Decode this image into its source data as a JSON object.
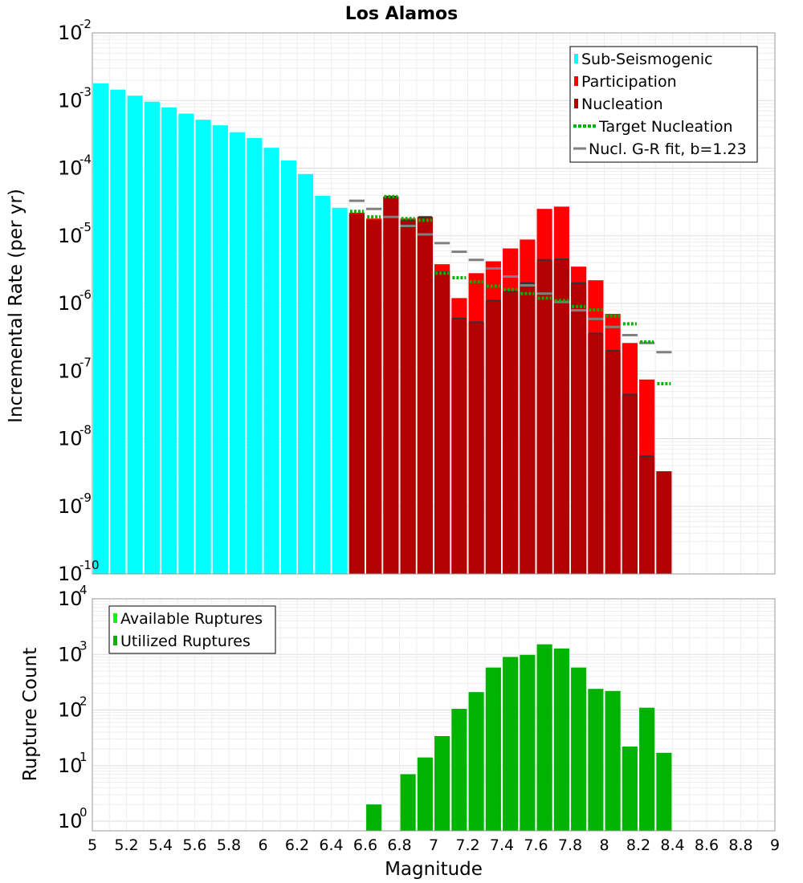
{
  "chart_data": [
    {
      "type": "bar",
      "title": "Los Alamos",
      "ylabel": "Incremental Rate (per yr)",
      "xlim": [
        5,
        9
      ],
      "ylim_exp": [
        -10,
        -2
      ],
      "yscale": "log",
      "grid": true,
      "legend_position": "top-right",
      "ytick_base": "10",
      "ytick_exponents": [
        "-10",
        "-9",
        "-8",
        "-7",
        "-6",
        "-5",
        "-4",
        "-3",
        "-2"
      ],
      "legend": [
        "Sub-Seismogenic",
        "Participation",
        "Nucleation",
        "Target Nucleation",
        "Nucl. G-R fit, b=1.23"
      ],
      "colors": {
        "sub": "#00ffff",
        "participation": "#ff0000",
        "nucleation": "#b30000",
        "target": "#00b300",
        "gr": "#808080",
        "nucl_mark": "#333333"
      },
      "x": [
        5.05,
        5.15,
        5.25,
        5.35,
        5.45,
        5.55,
        5.65,
        5.75,
        5.85,
        5.95,
        6.05,
        6.15,
        6.25,
        6.35,
        6.45,
        6.55,
        6.65,
        6.75,
        6.85,
        6.95,
        7.05,
        7.15,
        7.25,
        7.35,
        7.45,
        7.55,
        7.65,
        7.75,
        7.85,
        7.95,
        8.05,
        8.15,
        8.25,
        8.35
      ],
      "series": [
        {
          "name": "Sub-Seismogenic",
          "values": [
            0.0018,
            0.00145,
            0.00118,
            0.00096,
            0.00079,
            0.00064,
            0.00052,
            0.00043,
            0.00034,
            0.00028,
            0.0002,
            0.00013,
            8.2e-05,
            3.9e-05,
            2.6e-05,
            null,
            null,
            null,
            null,
            null,
            null,
            null,
            null,
            null,
            null,
            null,
            null,
            null,
            null,
            null,
            null,
            null,
            null,
            null
          ]
        },
        {
          "name": "Participation",
          "values": [
            null,
            null,
            null,
            null,
            null,
            null,
            null,
            null,
            null,
            null,
            null,
            null,
            null,
            null,
            null,
            2.2e-05,
            1.8e-05,
            3.8e-05,
            1.8e-05,
            1.9e-05,
            3.8e-06,
            1.2e-06,
            2.8e-06,
            4.2e-06,
            6.5e-06,
            8.8e-06,
            2.5e-05,
            2.7e-05,
            3.5e-06,
            2.2e-06,
            7e-07,
            2.6e-07,
            7.5e-08,
            null
          ]
        },
        {
          "name": "Nucleation",
          "values": [
            null,
            null,
            null,
            null,
            null,
            null,
            null,
            null,
            null,
            null,
            null,
            null,
            null,
            null,
            null,
            2.1e-05,
            1.7e-05,
            3.8e-05,
            1.7e-05,
            1.9e-05,
            2.9e-06,
            6e-07,
            5.3e-07,
            1.1e-06,
            1.5e-06,
            2e-06,
            4.4e-06,
            4.5e-06,
            2e-06,
            3.6e-07,
            2e-07,
            4.5e-08,
            5.5e-09,
            3.3e-09
          ]
        },
        {
          "name": "Target Nucleation",
          "values": [
            null,
            null,
            null,
            null,
            null,
            null,
            null,
            null,
            null,
            null,
            null,
            null,
            null,
            null,
            null,
            2.3e-05,
            1.9e-05,
            3.8e-05,
            1.8e-05,
            1.7e-05,
            2.8e-06,
            2.4e-06,
            2.1e-06,
            1.8e-06,
            1.6e-06,
            1.4e-06,
            1.2e-06,
            1.1e-06,
            9e-07,
            8e-07,
            6.5e-07,
            5e-07,
            2.7e-07,
            6.5e-08
          ]
        },
        {
          "name": "Nucl. G-R fit, b=1.23",
          "values": [
            null,
            null,
            null,
            null,
            null,
            null,
            null,
            null,
            null,
            null,
            null,
            null,
            null,
            null,
            null,
            3.3e-05,
            2.5e-05,
            1.9e-05,
            1.4e-05,
            1.05e-05,
            7.8e-06,
            5.8e-06,
            4.4e-06,
            3.3e-06,
            2.5e-06,
            1.85e-06,
            1.4e-06,
            1.05e-06,
            7.9e-07,
            5.9e-07,
            4.5e-07,
            3.4e-07,
            2.6e-07,
            1.9e-07
          ]
        }
      ]
    },
    {
      "type": "bar",
      "xlabel": "Magnitude",
      "ylabel": "Rupture Count",
      "xlim": [
        5,
        9
      ],
      "ylim_exp": [
        0,
        4
      ],
      "yscale": "log",
      "grid": true,
      "legend_position": "top-left",
      "ytick_base": "10",
      "ytick_exponents": [
        "0",
        "1",
        "2",
        "3",
        "4"
      ],
      "legend": [
        "Available Ruptures",
        "Utilized Ruptures"
      ],
      "colors": {
        "available": "#00ff00",
        "utilized": "#00b300"
      },
      "xtick_labels": [
        "5",
        "5.2",
        "5.4",
        "5.6",
        "5.8",
        "6",
        "6.2",
        "6.4",
        "6.6",
        "6.8",
        "7",
        "7.2",
        "7.4",
        "7.6",
        "7.8",
        "8",
        "8.2",
        "8.4",
        "8.6",
        "8.8",
        "9"
      ],
      "x": [
        6.65,
        6.75,
        6.85,
        6.95,
        7.05,
        7.15,
        7.25,
        7.35,
        7.45,
        7.55,
        7.65,
        7.75,
        7.85,
        7.95,
        8.05,
        8.15,
        8.25,
        8.35
      ],
      "series": [
        {
          "name": "Utilized Ruptures",
          "values": [
            2,
            0,
            7,
            14,
            34,
            105,
            210,
            580,
            900,
            980,
            1520,
            1280,
            580,
            240,
            220,
            22,
            110,
            17
          ]
        }
      ]
    }
  ]
}
